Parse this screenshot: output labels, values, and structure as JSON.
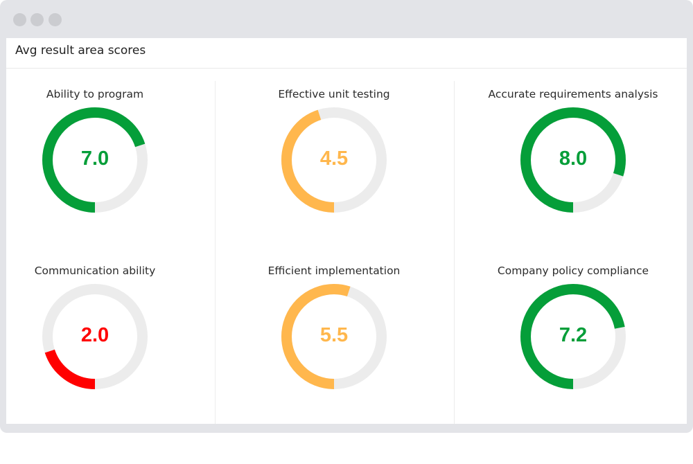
{
  "window": {
    "title": "Avg result area scores"
  },
  "scale_max": 10,
  "colors": {
    "good": "#059e39",
    "medium": "#ffb74d",
    "poor": "#ff0000",
    "track": "#ececec"
  },
  "gauges": [
    {
      "label": "Ability to program",
      "value": "7.0",
      "score": 7.0,
      "color": "#059e39"
    },
    {
      "label": "Effective unit testing",
      "value": "4.5",
      "score": 4.5,
      "color": "#ffb74d"
    },
    {
      "label": "Accurate requirements analysis",
      "value": "8.0",
      "score": 8.0,
      "color": "#059e39"
    },
    {
      "label": "Communication ability",
      "value": "2.0",
      "score": 2.0,
      "color": "#ff0000"
    },
    {
      "label": "Efficient implementation",
      "value": "5.5",
      "score": 5.5,
      "color": "#ffb74d"
    },
    {
      "label": "Company policy compliance",
      "value": "7.2",
      "score": 7.2,
      "color": "#059e39"
    }
  ]
}
